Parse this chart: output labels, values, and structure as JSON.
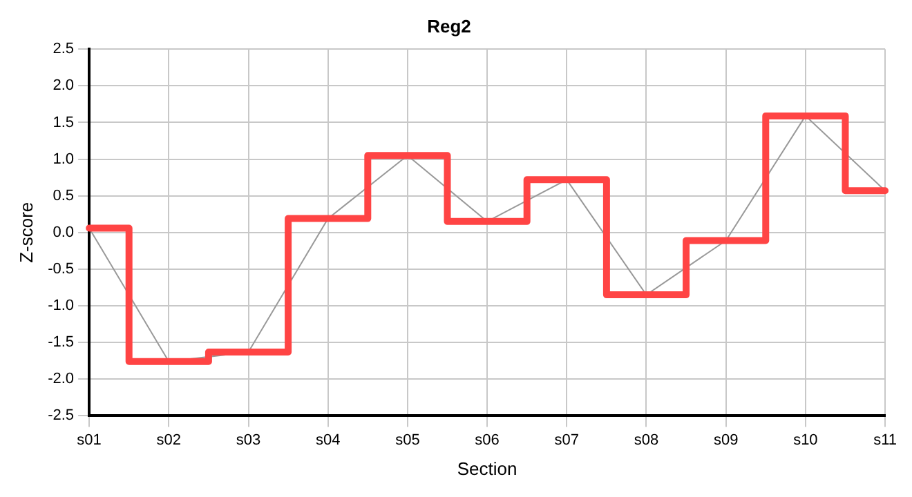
{
  "chart_data": {
    "type": "step",
    "title": "Reg2",
    "xlabel": "Section",
    "ylabel": "Z-score",
    "categories": [
      "s01",
      "s02",
      "s03",
      "s04",
      "s05",
      "s06",
      "s07",
      "s08",
      "s09",
      "s10",
      "s11"
    ],
    "series": [
      {
        "type": "line",
        "color": "#999999",
        "values": [
          0.06,
          -1.76,
          -1.63,
          0.19,
          1.05,
          0.15,
          0.72,
          -0.85,
          -0.11,
          1.59,
          0.57
        ]
      },
      {
        "color": "#ff4444",
        "values": [
          0.06,
          -1.76,
          -1.63,
          0.19,
          1.05,
          0.15,
          0.72,
          -0.85,
          -0.11,
          1.59,
          0.57
        ]
      }
    ],
    "ylim": [
      -2.5,
      2.5
    ],
    "yticks": [
      -2.5,
      {
        "value": -2,
        "label": "-2.0"
      },
      -1.5,
      {
        "value": -1,
        "label": "-1.0"
      },
      -0.5,
      {
        "value": 0,
        "label": "0.0"
      },
      0.5,
      {
        "value": 1,
        "label": "1.0"
      },
      1.5,
      {
        "value": 2,
        "label": "2.0"
      },
      2.5
    ],
    "grid": true,
    "legend": false
  }
}
